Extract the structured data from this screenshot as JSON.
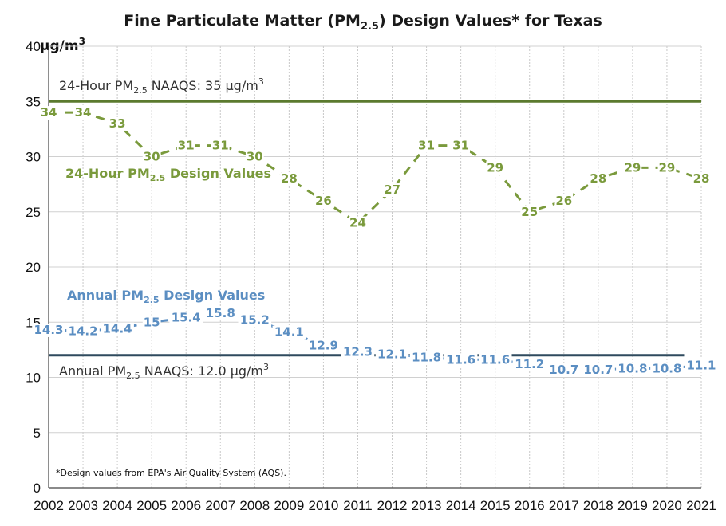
{
  "chart_data": {
    "type": "line",
    "title": "Fine Particulate Matter (PM2.5) Design Values* for Texas",
    "title_parts": {
      "pre": "Fine Particulate Matter (PM",
      "sub": "2.5",
      "post": ") Design Values* for Texas"
    },
    "ylabel": "µg/m³",
    "ylabel_parts": {
      "base": "µg/m",
      "sup": "3"
    },
    "ylim": [
      0,
      40
    ],
    "yticks": [
      0,
      5,
      10,
      15,
      20,
      25,
      30,
      35,
      40
    ],
    "x": [
      2002,
      2003,
      2004,
      2005,
      2006,
      2007,
      2008,
      2009,
      2010,
      2011,
      2012,
      2013,
      2014,
      2015,
      2016,
      2017,
      2018,
      2019,
      2020,
      2021
    ],
    "series": [
      {
        "name": "24-Hour PM2.5 Design Values",
        "name_parts": {
          "pre": "24-Hour PM",
          "sub": "2.5",
          "post": " Design Values"
        },
        "color": "#7a9a3c",
        "style": "dashed",
        "values": [
          34,
          34,
          33,
          30,
          31,
          31,
          30,
          28,
          26,
          24,
          27,
          31,
          31,
          29,
          25,
          26,
          28,
          29,
          29,
          28
        ],
        "labels": [
          "34",
          "34",
          "33",
          "30",
          "31",
          "31",
          "30",
          "28",
          "26",
          "24",
          "27",
          "31",
          "31",
          "29",
          "25",
          "26",
          "28",
          "29",
          "29",
          "28"
        ]
      },
      {
        "name": "Annual PM2.5 Design Values",
        "name_parts": {
          "pre": "Annual PM",
          "sub": "2.5",
          "post": " Design Values"
        },
        "color": "#5b8ec2",
        "style": "dashed",
        "values": [
          14.3,
          14.2,
          14.4,
          15,
          15.4,
          15.8,
          15.2,
          14.1,
          12.9,
          12.3,
          12.1,
          11.8,
          11.6,
          11.6,
          11.2,
          10.7,
          10.7,
          10.8,
          10.8,
          11.1
        ],
        "labels": [
          "14.3",
          "14.2",
          "14.4",
          "15",
          "15.4",
          "15.8",
          "15.2",
          "14.1",
          "12.9",
          "12.3",
          "12.1",
          "11.8",
          "11.6",
          "11.6",
          "11.2",
          "10.7",
          "10.7",
          "10.8",
          "10.8",
          "11.1"
        ]
      }
    ],
    "reference_lines": [
      {
        "label": "24-Hour PM2.5 NAAQS: 35 µg/m³",
        "label_parts": {
          "pre": "24-Hour PM",
          "sub": "2.5",
          "mid": " NAAQS: 35 µg/m",
          "sup": "3"
        },
        "value": 35,
        "color": "#5b7a2e",
        "x_range": [
          2002,
          2021
        ]
      },
      {
        "label": "Annual PM2.5 NAAQS: 12.0 µg/m³",
        "label_parts": {
          "pre": "Annual PM",
          "sub": "2.5",
          "mid": " NAAQS: 12.0 µg/m",
          "sup": "3"
        },
        "value": 12,
        "color": "#2f4a5e",
        "x_range": [
          2002,
          2020.5
        ]
      }
    ],
    "grid": {
      "horizontal": true,
      "vertical": true
    },
    "footnote": "*Design values from EPA's Air Quality System (AQS)."
  }
}
